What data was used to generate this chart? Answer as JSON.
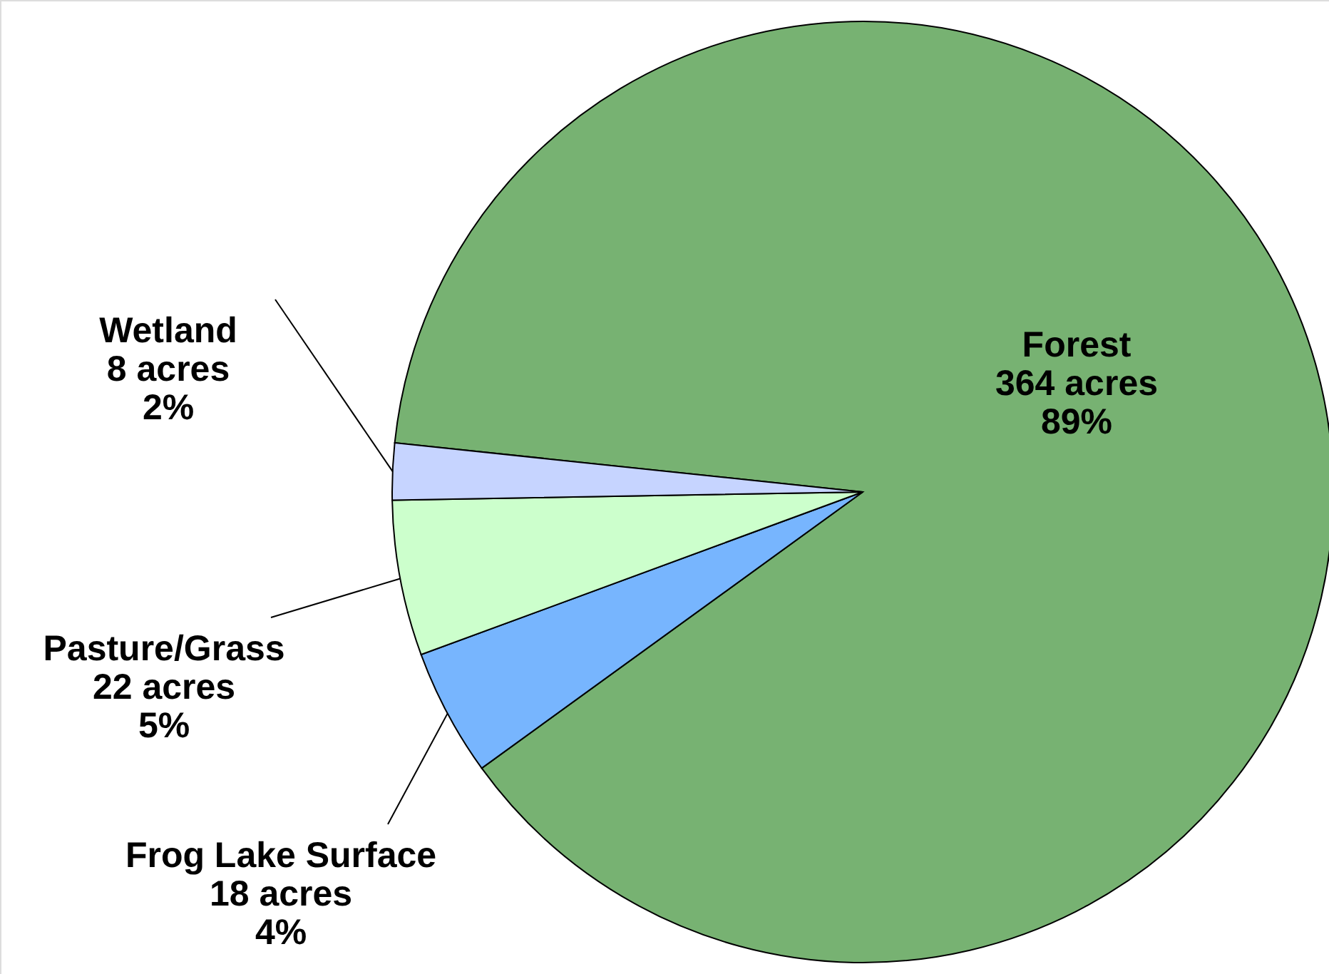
{
  "chart_data": {
    "type": "pie",
    "categories": [
      "Forest",
      "Frog Lake Surface",
      "Pasture/Grass",
      "Wetland"
    ],
    "values": [
      364,
      18,
      22,
      8
    ],
    "value_labels": [
      "364 acres\n89%",
      "18 acres\n4%",
      "22 acres\n5%",
      "8 acres\n2%"
    ],
    "colors": [
      "#77b272",
      "#77b5fe",
      "#ccffcc",
      "#c6d4ff"
    ],
    "legend": false
  }
}
